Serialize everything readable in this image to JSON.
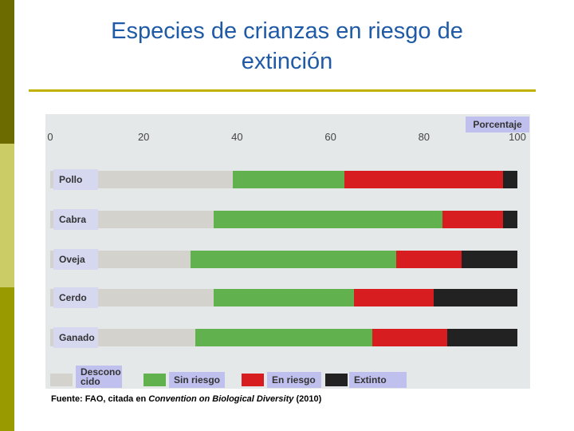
{
  "title_line1": "Especies de crianzas en riesgo de",
  "title_line2": "extinción",
  "percent_label": "Porcentaje",
  "colors": {
    "desconocido": "#d4d2cc",
    "sin_riesgo": "#62b14f",
    "en_riesgo": "#d81d20",
    "extinto": "#222222"
  },
  "chart_data": {
    "type": "bar",
    "orientation": "horizontal",
    "stacked": true,
    "title": "Especies de crianzas en riesgo de extinción",
    "xlabel": "Porcentaje",
    "xlim": [
      0,
      100
    ],
    "xticks": [
      "0",
      "20",
      "40",
      "60",
      "80",
      "100"
    ],
    "categories": [
      "Pollo",
      "Cabra",
      "Oveja",
      "Cerdo",
      "Ganado"
    ],
    "series": [
      {
        "name": "Desconocido",
        "values": [
          39,
          35,
          30,
          35,
          31
        ]
      },
      {
        "name": "Sin riesgo",
        "values": [
          24,
          49,
          44,
          30,
          38
        ]
      },
      {
        "name": "En riesgo",
        "values": [
          34,
          13,
          14,
          17,
          16
        ]
      },
      {
        "name": "Extinto",
        "values": [
          3,
          3,
          12,
          18,
          15
        ]
      }
    ]
  },
  "legend": {
    "desconocido_line1": "Descono",
    "desconocido_line2": "cido",
    "sin_riesgo": "Sin riesgo",
    "en_riesgo": "En riesgo",
    "extinto": "Extinto"
  },
  "source": {
    "prefix": "Fuente: FAO, citada en ",
    "italic": "Convention on Biological Diversity",
    "suffix": " (2010)"
  }
}
